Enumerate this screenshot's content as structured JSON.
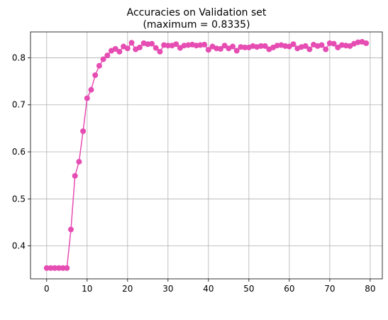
{
  "chart_data": {
    "type": "line",
    "title_line1": "Accuracies on Validation set",
    "title_line2": "(maximum = 0.8335)",
    "xlabel": "",
    "ylabel": "",
    "xlim": [
      -4,
      83
    ],
    "ylim": [
      0.33,
      0.855
    ],
    "xticks": [
      0,
      10,
      20,
      30,
      40,
      50,
      60,
      70,
      80
    ],
    "xtick_labels": [
      "0",
      "10",
      "20",
      "30",
      "40",
      "50",
      "60",
      "70",
      "80"
    ],
    "yticks": [
      0.4,
      0.5,
      0.6,
      0.7,
      0.8
    ],
    "ytick_labels": [
      "0.4",
      "0.5",
      "0.6",
      "0.7",
      "0.8"
    ],
    "grid": true,
    "color": "#e64db3",
    "series": [
      {
        "x": [
          0,
          1,
          2,
          3,
          4,
          5,
          6,
          7,
          8,
          9,
          10,
          11,
          12,
          13,
          14,
          15,
          16,
          17,
          18,
          19,
          20,
          21,
          22,
          23,
          24,
          25,
          26,
          27,
          28,
          29,
          30,
          31,
          32,
          33,
          34,
          35,
          36,
          37,
          38,
          39,
          40,
          41,
          42,
          43,
          44,
          45,
          46,
          47,
          48,
          49,
          50,
          51,
          52,
          53,
          54,
          55,
          56,
          57,
          58,
          59,
          60,
          61,
          62,
          63,
          64,
          65,
          66,
          67,
          68,
          69,
          70,
          71,
          72,
          73,
          74,
          75,
          76,
          77,
          78,
          79
        ],
        "values": [
          0.353,
          0.353,
          0.353,
          0.353,
          0.353,
          0.353,
          0.435,
          0.549,
          0.579,
          0.644,
          0.714,
          0.732,
          0.763,
          0.783,
          0.797,
          0.805,
          0.815,
          0.819,
          0.813,
          0.824,
          0.82,
          0.832,
          0.818,
          0.822,
          0.831,
          0.829,
          0.83,
          0.821,
          0.813,
          0.827,
          0.826,
          0.826,
          0.829,
          0.821,
          0.826,
          0.827,
          0.828,
          0.826,
          0.827,
          0.828,
          0.817,
          0.824,
          0.82,
          0.819,
          0.826,
          0.82,
          0.824,
          0.815,
          0.823,
          0.822,
          0.822,
          0.825,
          0.823,
          0.825,
          0.825,
          0.818,
          0.822,
          0.826,
          0.827,
          0.825,
          0.824,
          0.829,
          0.82,
          0.823,
          0.825,
          0.818,
          0.828,
          0.825,
          0.827,
          0.818,
          0.831,
          0.83,
          0.822,
          0.827,
          0.826,
          0.825,
          0.83,
          0.833,
          0.834,
          0.831
        ]
      }
    ]
  }
}
